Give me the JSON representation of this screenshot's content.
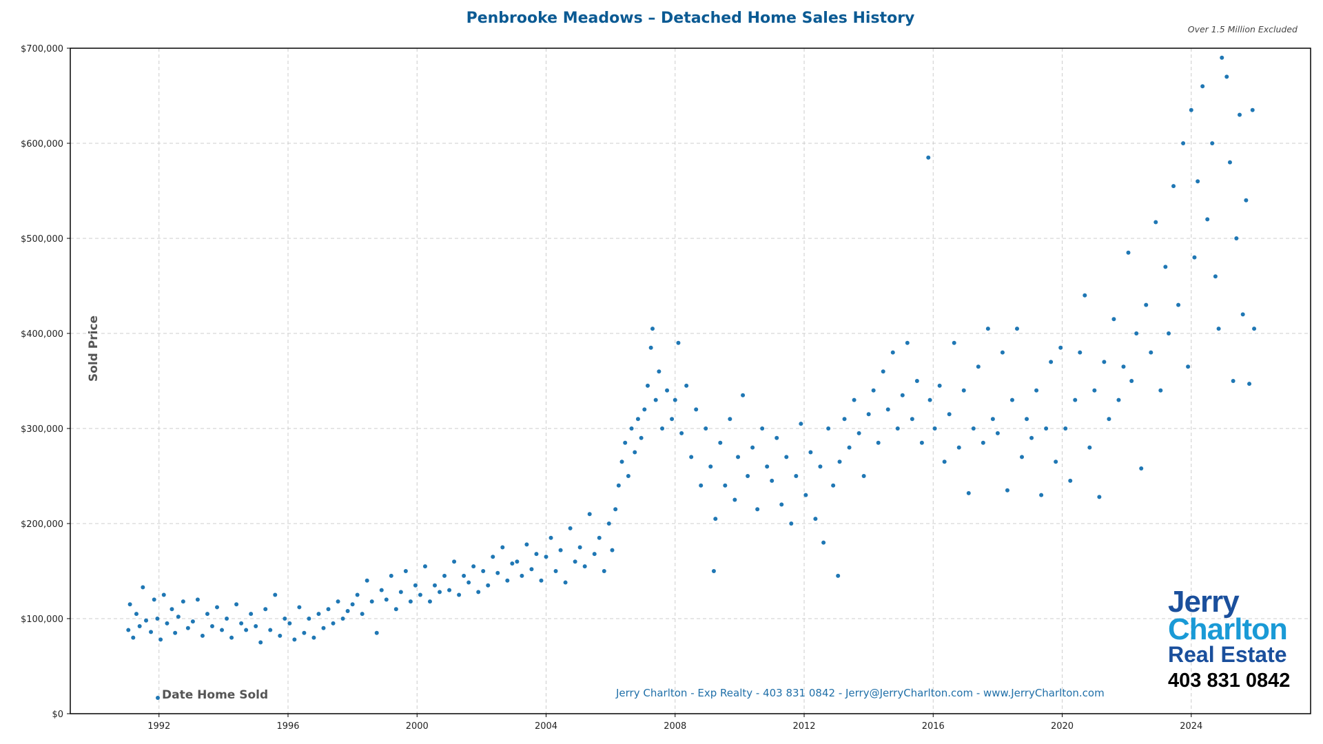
{
  "chart_data": {
    "type": "scatter",
    "title": "Penbrooke Meadows – Detached Home Sales History",
    "subtitle": "Over 1.5 Million Excluded",
    "xlabel": "Date Home Sold",
    "ylabel": "Sold Price",
    "series_name": "Date Home Sold",
    "legend_position": "bottom-left",
    "grid": true,
    "xlim": [
      1989.25,
      2027.7
    ],
    "ylim": [
      0,
      700000
    ],
    "xticks": [
      1992,
      1996,
      2000,
      2004,
      2008,
      2012,
      2016,
      2020,
      2024
    ],
    "xtick_labels": [
      "1992",
      "1996",
      "2000",
      "2004",
      "2008",
      "2012",
      "2016",
      "2020",
      "2024"
    ],
    "yticks": [
      0,
      100000,
      200000,
      300000,
      400000,
      500000,
      600000,
      700000
    ],
    "ytick_labels": [
      "$0",
      "$100,000",
      "$200,000",
      "$300,000",
      "$400,000",
      "$500,000",
      "$600,000",
      "$700,000"
    ],
    "color": "#1f77b4",
    "points": [
      [
        1991.05,
        88000
      ],
      [
        1991.1,
        115000
      ],
      [
        1991.2,
        80000
      ],
      [
        1991.3,
        105000
      ],
      [
        1991.4,
        92000
      ],
      [
        1991.5,
        133000
      ],
      [
        1991.6,
        98000
      ],
      [
        1991.75,
        86000
      ],
      [
        1991.85,
        120000
      ],
      [
        1991.95,
        100000
      ],
      [
        1992.05,
        78000
      ],
      [
        1992.15,
        125000
      ],
      [
        1992.25,
        95000
      ],
      [
        1992.4,
        110000
      ],
      [
        1992.5,
        85000
      ],
      [
        1992.6,
        102000
      ],
      [
        1992.75,
        118000
      ],
      [
        1992.9,
        90000
      ],
      [
        1993.05,
        97000
      ],
      [
        1993.2,
        120000
      ],
      [
        1993.35,
        82000
      ],
      [
        1993.5,
        105000
      ],
      [
        1993.65,
        92000
      ],
      [
        1993.8,
        112000
      ],
      [
        1993.95,
        88000
      ],
      [
        1994.1,
        100000
      ],
      [
        1994.25,
        80000
      ],
      [
        1994.4,
        115000
      ],
      [
        1994.55,
        95000
      ],
      [
        1994.7,
        88000
      ],
      [
        1994.85,
        105000
      ],
      [
        1995.0,
        92000
      ],
      [
        1995.15,
        75000
      ],
      [
        1995.3,
        110000
      ],
      [
        1995.45,
        88000
      ],
      [
        1995.6,
        125000
      ],
      [
        1995.75,
        82000
      ],
      [
        1995.9,
        100000
      ],
      [
        1996.05,
        95000
      ],
      [
        1996.2,
        78000
      ],
      [
        1996.35,
        112000
      ],
      [
        1996.5,
        85000
      ],
      [
        1996.65,
        100000
      ],
      [
        1996.8,
        80000
      ],
      [
        1996.95,
        105000
      ],
      [
        1997.1,
        90000
      ],
      [
        1997.25,
        110000
      ],
      [
        1997.4,
        95000
      ],
      [
        1997.55,
        118000
      ],
      [
        1997.7,
        100000
      ],
      [
        1997.85,
        108000
      ],
      [
        1998.0,
        115000
      ],
      [
        1998.15,
        125000
      ],
      [
        1998.3,
        105000
      ],
      [
        1998.45,
        140000
      ],
      [
        1998.6,
        118000
      ],
      [
        1998.75,
        85000
      ],
      [
        1998.9,
        130000
      ],
      [
        1999.05,
        120000
      ],
      [
        1999.2,
        145000
      ],
      [
        1999.35,
        110000
      ],
      [
        1999.5,
        128000
      ],
      [
        1999.65,
        150000
      ],
      [
        1999.8,
        118000
      ],
      [
        1999.95,
        135000
      ],
      [
        2000.1,
        125000
      ],
      [
        2000.25,
        155000
      ],
      [
        2000.4,
        118000
      ],
      [
        2000.55,
        135000
      ],
      [
        2000.7,
        128000
      ],
      [
        2000.85,
        145000
      ],
      [
        2001.0,
        130000
      ],
      [
        2001.15,
        160000
      ],
      [
        2001.3,
        125000
      ],
      [
        2001.45,
        145000
      ],
      [
        2001.6,
        138000
      ],
      [
        2001.75,
        155000
      ],
      [
        2001.9,
        128000
      ],
      [
        2002.05,
        150000
      ],
      [
        2002.2,
        135000
      ],
      [
        2002.35,
        165000
      ],
      [
        2002.5,
        148000
      ],
      [
        2002.65,
        175000
      ],
      [
        2002.8,
        140000
      ],
      [
        2002.95,
        158000
      ],
      [
        2003.1,
        160000
      ],
      [
        2003.25,
        145000
      ],
      [
        2003.4,
        178000
      ],
      [
        2003.55,
        152000
      ],
      [
        2003.7,
        168000
      ],
      [
        2003.85,
        140000
      ],
      [
        2004.0,
        165000
      ],
      [
        2004.15,
        185000
      ],
      [
        2004.3,
        150000
      ],
      [
        2004.45,
        172000
      ],
      [
        2004.6,
        138000
      ],
      [
        2004.75,
        195000
      ],
      [
        2004.9,
        160000
      ],
      [
        2005.05,
        175000
      ],
      [
        2005.2,
        155000
      ],
      [
        2005.35,
        210000
      ],
      [
        2005.5,
        168000
      ],
      [
        2005.65,
        185000
      ],
      [
        2005.8,
        150000
      ],
      [
        2005.95,
        200000
      ],
      [
        2006.05,
        172000
      ],
      [
        2006.15,
        215000
      ],
      [
        2006.25,
        240000
      ],
      [
        2006.35,
        265000
      ],
      [
        2006.45,
        285000
      ],
      [
        2006.55,
        250000
      ],
      [
        2006.65,
        300000
      ],
      [
        2006.75,
        275000
      ],
      [
        2006.85,
        310000
      ],
      [
        2006.95,
        290000
      ],
      [
        2007.05,
        320000
      ],
      [
        2007.15,
        345000
      ],
      [
        2007.25,
        385000
      ],
      [
        2007.3,
        405000
      ],
      [
        2007.4,
        330000
      ],
      [
        2007.5,
        360000
      ],
      [
        2007.6,
        300000
      ],
      [
        2007.75,
        340000
      ],
      [
        2007.9,
        310000
      ],
      [
        2008.0,
        330000
      ],
      [
        2008.1,
        390000
      ],
      [
        2008.2,
        295000
      ],
      [
        2008.35,
        345000
      ],
      [
        2008.5,
        270000
      ],
      [
        2008.65,
        320000
      ],
      [
        2008.8,
        240000
      ],
      [
        2008.95,
        300000
      ],
      [
        2009.1,
        260000
      ],
      [
        2009.2,
        150000
      ],
      [
        2009.25,
        205000
      ],
      [
        2009.4,
        285000
      ],
      [
        2009.55,
        240000
      ],
      [
        2009.7,
        310000
      ],
      [
        2009.85,
        225000
      ],
      [
        2009.95,
        270000
      ],
      [
        2010.1,
        335000
      ],
      [
        2010.25,
        250000
      ],
      [
        2010.4,
        280000
      ],
      [
        2010.55,
        215000
      ],
      [
        2010.7,
        300000
      ],
      [
        2010.85,
        260000
      ],
      [
        2011.0,
        245000
      ],
      [
        2011.15,
        290000
      ],
      [
        2011.3,
        220000
      ],
      [
        2011.45,
        270000
      ],
      [
        2011.6,
        200000
      ],
      [
        2011.75,
        250000
      ],
      [
        2011.9,
        305000
      ],
      [
        2012.05,
        230000
      ],
      [
        2012.2,
        275000
      ],
      [
        2012.35,
        205000
      ],
      [
        2012.5,
        260000
      ],
      [
        2012.6,
        180000
      ],
      [
        2012.75,
        300000
      ],
      [
        2012.9,
        240000
      ],
      [
        2013.05,
        145000
      ],
      [
        2013.1,
        265000
      ],
      [
        2013.25,
        310000
      ],
      [
        2013.4,
        280000
      ],
      [
        2013.55,
        330000
      ],
      [
        2013.7,
        295000
      ],
      [
        2013.85,
        250000
      ],
      [
        2014.0,
        315000
      ],
      [
        2014.15,
        340000
      ],
      [
        2014.3,
        285000
      ],
      [
        2014.45,
        360000
      ],
      [
        2014.6,
        320000
      ],
      [
        2014.75,
        380000
      ],
      [
        2014.9,
        300000
      ],
      [
        2015.05,
        335000
      ],
      [
        2015.2,
        390000
      ],
      [
        2015.35,
        310000
      ],
      [
        2015.5,
        350000
      ],
      [
        2015.65,
        285000
      ],
      [
        2015.85,
        585000
      ],
      [
        2015.9,
        330000
      ],
      [
        2016.05,
        300000
      ],
      [
        2016.2,
        345000
      ],
      [
        2016.35,
        265000
      ],
      [
        2016.5,
        315000
      ],
      [
        2016.65,
        390000
      ],
      [
        2016.8,
        280000
      ],
      [
        2016.95,
        340000
      ],
      [
        2017.1,
        232000
      ],
      [
        2017.25,
        300000
      ],
      [
        2017.4,
        365000
      ],
      [
        2017.55,
        285000
      ],
      [
        2017.7,
        405000
      ],
      [
        2017.85,
        310000
      ],
      [
        2018.0,
        295000
      ],
      [
        2018.15,
        380000
      ],
      [
        2018.3,
        235000
      ],
      [
        2018.45,
        330000
      ],
      [
        2018.6,
        405000
      ],
      [
        2018.75,
        270000
      ],
      [
        2018.9,
        310000
      ],
      [
        2019.05,
        290000
      ],
      [
        2019.2,
        340000
      ],
      [
        2019.35,
        230000
      ],
      [
        2019.5,
        300000
      ],
      [
        2019.65,
        370000
      ],
      [
        2019.8,
        265000
      ],
      [
        2019.95,
        385000
      ],
      [
        2020.1,
        300000
      ],
      [
        2020.25,
        245000
      ],
      [
        2020.4,
        330000
      ],
      [
        2020.55,
        380000
      ],
      [
        2020.7,
        440000
      ],
      [
        2020.85,
        280000
      ],
      [
        2021.0,
        340000
      ],
      [
        2021.15,
        228000
      ],
      [
        2021.3,
        370000
      ],
      [
        2021.45,
        310000
      ],
      [
        2021.6,
        415000
      ],
      [
        2021.75,
        330000
      ],
      [
        2021.9,
        365000
      ],
      [
        2022.05,
        485000
      ],
      [
        2022.15,
        350000
      ],
      [
        2022.3,
        400000
      ],
      [
        2022.45,
        258000
      ],
      [
        2022.6,
        430000
      ],
      [
        2022.75,
        380000
      ],
      [
        2022.9,
        517000
      ],
      [
        2023.05,
        340000
      ],
      [
        2023.2,
        470000
      ],
      [
        2023.3,
        400000
      ],
      [
        2023.45,
        555000
      ],
      [
        2023.6,
        430000
      ],
      [
        2023.75,
        600000
      ],
      [
        2023.9,
        365000
      ],
      [
        2024.0,
        635000
      ],
      [
        2024.1,
        480000
      ],
      [
        2024.2,
        560000
      ],
      [
        2024.35,
        660000
      ],
      [
        2024.5,
        520000
      ],
      [
        2024.65,
        600000
      ],
      [
        2024.75,
        460000
      ],
      [
        2024.85,
        405000
      ],
      [
        2024.95,
        690000
      ],
      [
        2025.1,
        670000
      ],
      [
        2025.2,
        580000
      ],
      [
        2025.3,
        350000
      ],
      [
        2025.4,
        500000
      ],
      [
        2025.5,
        630000
      ],
      [
        2025.6,
        420000
      ],
      [
        2025.7,
        540000
      ],
      [
        2025.8,
        347000
      ],
      [
        2025.9,
        635000
      ],
      [
        2025.95,
        405000
      ]
    ]
  },
  "footer": "Jerry Charlton - Exp Realty - 403 831 0842 - Jerry@JerryCharlton.com - www.JerryCharlton.com",
  "logo": {
    "line1": "Jerry",
    "line2": "Charlton",
    "line3": "Real Estate",
    "phone": "403 831 0842"
  }
}
